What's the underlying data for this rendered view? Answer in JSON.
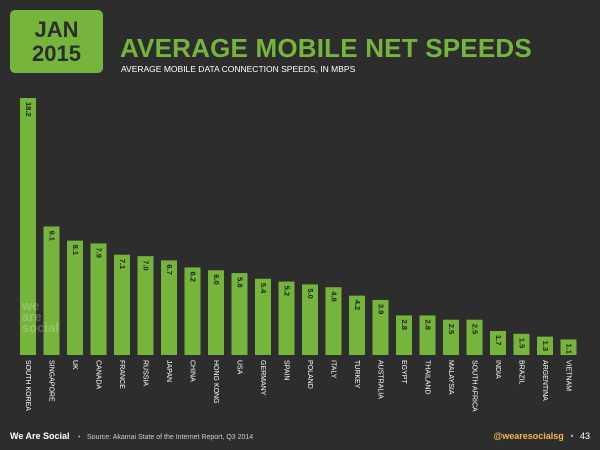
{
  "header": {
    "month": "JAN",
    "year": "2015",
    "title": "AVERAGE MOBILE NET SPEEDS",
    "subtitle": "AVERAGE MOBILE DATA CONNECTION SPEEDS, IN MBPS"
  },
  "watermark": {
    "line1": "we",
    "line2": "are",
    "line3": "social"
  },
  "footer": {
    "brand": "We Are Social",
    "separator": "•",
    "source": "Source: Akamai State of the Internet Report, Q3 2014",
    "handle": "@wearesocialsg",
    "page": "43"
  },
  "colors": {
    "background": "#2d2d2d",
    "accent": "#76b53c",
    "bar": "#76b53c",
    "handle": "#f2b84a"
  },
  "chart_data": {
    "type": "bar",
    "categories": [
      "SOUTH KOREA",
      "SINGAPORE",
      "UK",
      "CANADA",
      "FRANCE",
      "RUSSIA",
      "JAPAN",
      "CHINA",
      "HONG KONG",
      "USA",
      "GERMANY",
      "SPAIN",
      "POLAND",
      "ITALY",
      "TURKEY",
      "AUSTRALIA",
      "EGYPT",
      "THAILAND",
      "MALAYSIA",
      "SOUTH AFRICA",
      "INDIA",
      "BRAZIL",
      "ARGENTINA",
      "VIETNAM"
    ],
    "values": [
      18.2,
      9.1,
      8.1,
      7.9,
      7.1,
      7.0,
      6.7,
      6.2,
      6.0,
      5.8,
      5.4,
      5.2,
      5.0,
      4.8,
      4.2,
      3.9,
      2.8,
      2.8,
      2.5,
      2.5,
      1.7,
      1.5,
      1.3,
      1.1
    ],
    "value_labels": [
      "18.2",
      "9.1",
      "8.1",
      "7.9",
      "7.1",
      "7.0",
      "6.7",
      "6.2",
      "6.0",
      "5.8",
      "5.4",
      "5.2",
      "5.0",
      "4.8",
      "4.2",
      "3.9",
      "2.8",
      "2.8",
      "2.5",
      "2.5",
      "1.7",
      "1.5",
      "1.3",
      "1.1"
    ],
    "title": "AVERAGE MOBILE NET SPEEDS",
    "subtitle": "AVERAGE MOBILE DATA CONNECTION SPEEDS, IN MBPS",
    "ylim": [
      0,
      18.2
    ],
    "grid": false,
    "legend": "none"
  }
}
